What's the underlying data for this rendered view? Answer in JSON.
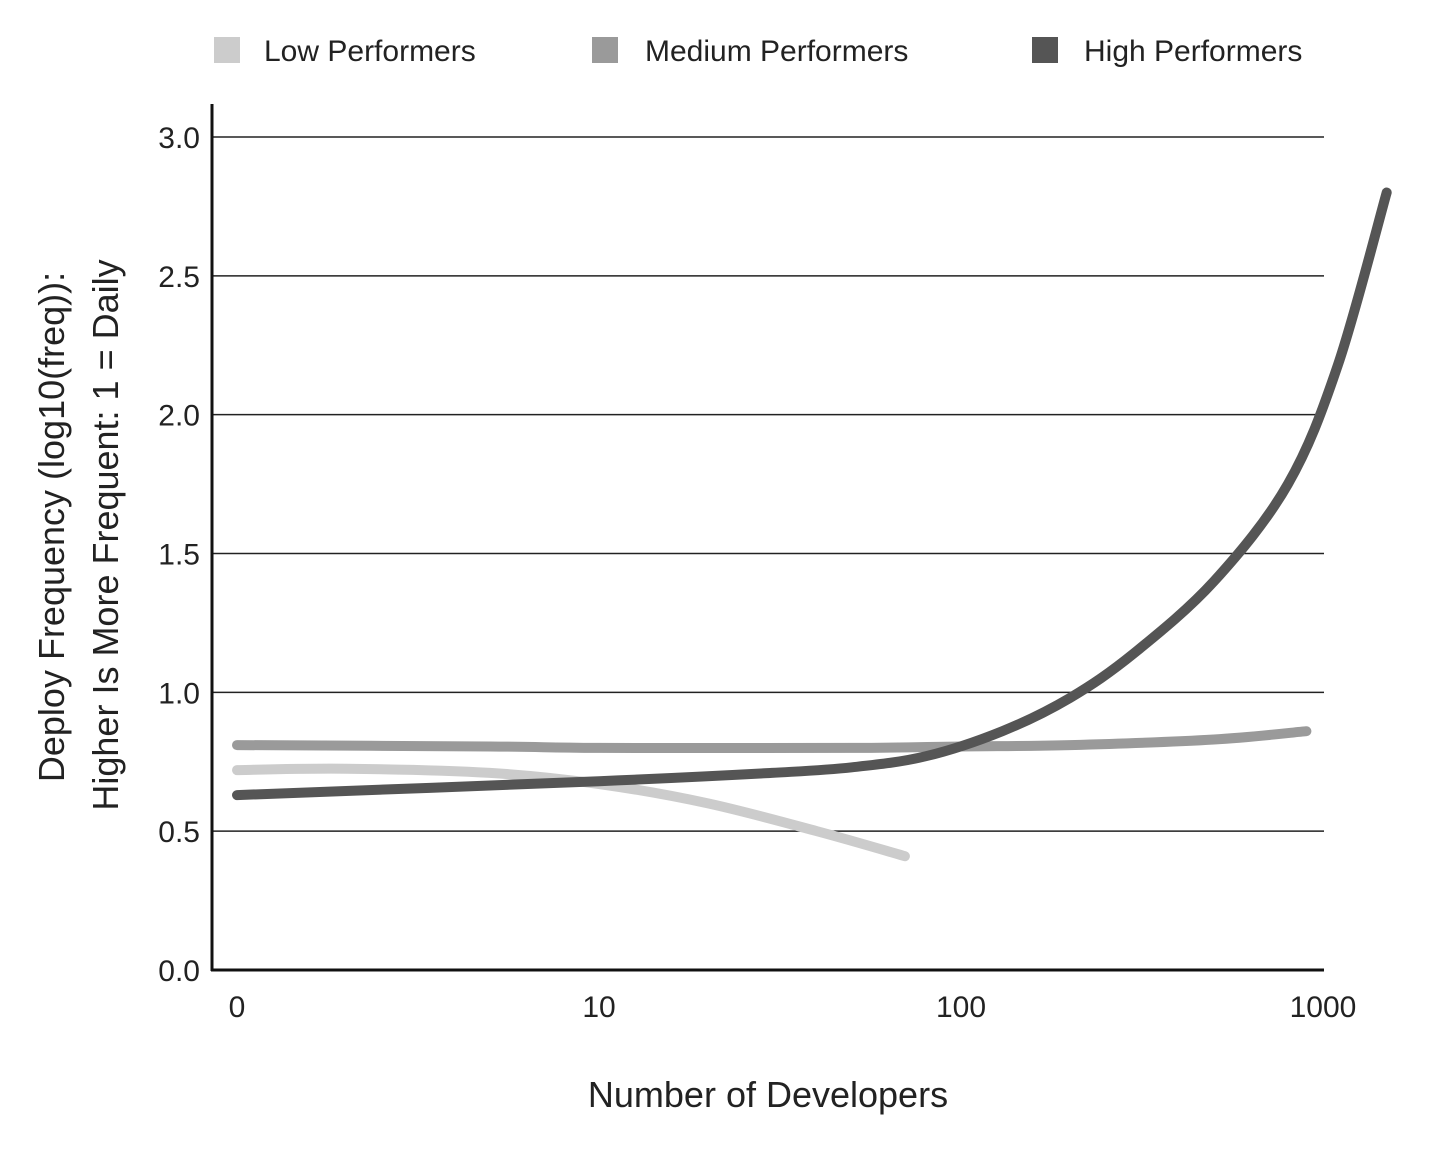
{
  "chart_data": {
    "type": "line",
    "xlabel": "Number of Developers",
    "ylabel_lines": [
      "Deploy Frequency (log10(freq)):",
      "Higher Is More Frequent: 1 = Daily"
    ],
    "x_scale": "log",
    "x_ticks": [
      {
        "value": 0,
        "label": "0"
      },
      {
        "value": 10,
        "label": "10"
      },
      {
        "value": 100,
        "label": "100"
      },
      {
        "value": 1000,
        "label": "1000"
      }
    ],
    "y_ticks": [
      {
        "value": 0.0,
        "label": "0.0"
      },
      {
        "value": 0.5,
        "label": "0.5"
      },
      {
        "value": 1.0,
        "label": "1.0"
      },
      {
        "value": 1.5,
        "label": "1.5"
      },
      {
        "value": 2.0,
        "label": "2.0"
      },
      {
        "value": 2.5,
        "label": "2.5"
      },
      {
        "value": 3.0,
        "label": "3.0"
      }
    ],
    "ylim": [
      0,
      3.0
    ],
    "grid": "horizontal",
    "legend_position": "top",
    "series": [
      {
        "name": "Low Performers",
        "color": "#cccccc",
        "points": [
          [
            1,
            0.72
          ],
          [
            2,
            0.725
          ],
          [
            5,
            0.71
          ],
          [
            10,
            0.67
          ],
          [
            20,
            0.6
          ],
          [
            40,
            0.5
          ],
          [
            70,
            0.41
          ]
        ]
      },
      {
        "name": "Medium Performers",
        "color": "#9a9a9a",
        "points": [
          [
            1,
            0.81
          ],
          [
            5,
            0.805
          ],
          [
            10,
            0.8
          ],
          [
            50,
            0.8
          ],
          [
            100,
            0.805
          ],
          [
            200,
            0.81
          ],
          [
            500,
            0.83
          ],
          [
            900,
            0.86
          ]
        ]
      },
      {
        "name": "High Performers",
        "color": "#555555",
        "points": [
          [
            1,
            0.63
          ],
          [
            10,
            0.68
          ],
          [
            30,
            0.71
          ],
          [
            50,
            0.73
          ],
          [
            80,
            0.77
          ],
          [
            130,
            0.86
          ],
          [
            200,
            0.98
          ],
          [
            300,
            1.14
          ],
          [
            500,
            1.4
          ],
          [
            800,
            1.75
          ],
          [
            1100,
            2.18
          ],
          [
            1500,
            2.8
          ]
        ]
      }
    ]
  }
}
